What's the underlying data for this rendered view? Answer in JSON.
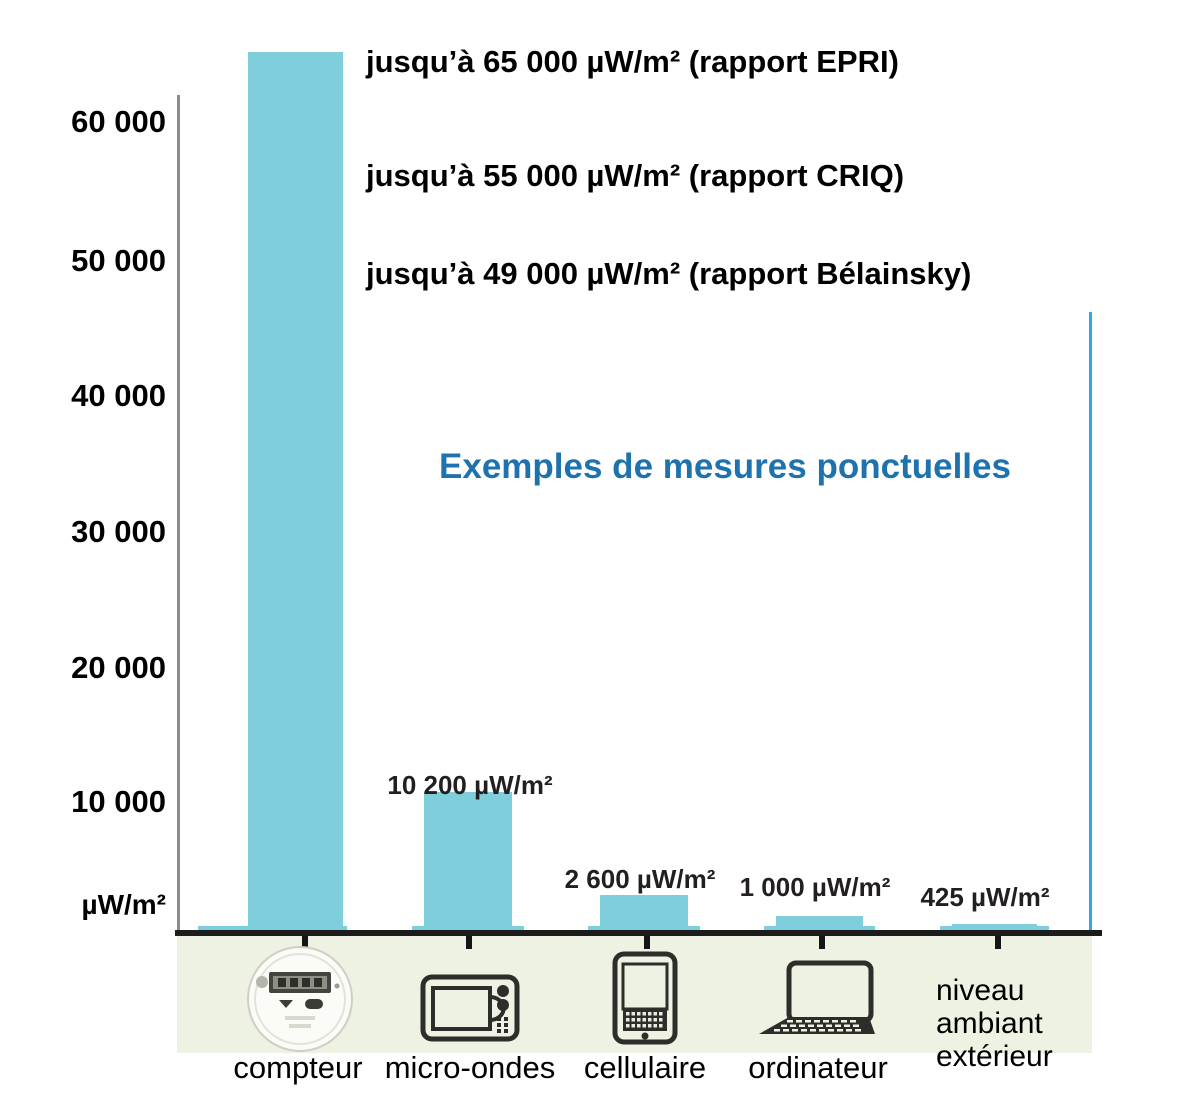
{
  "title": {
    "text": "Exemples de mesures ponctuelles",
    "color": "#1e73ae"
  },
  "annotations": [
    {
      "text": "jusqu’à 65 000 µW/m² (rapport EPRI)"
    },
    {
      "text": "jusqu’à 55 000 µW/m² (rapport CRIQ)"
    },
    {
      "text": "jusqu’à 49 000 µW/m² (rapport Bélainsky)"
    }
  ],
  "y_axis": {
    "unit": "µW/m²",
    "ticks": [
      "60 000",
      "50 000",
      "40 000",
      "30 000",
      "20 000",
      "10 000"
    ]
  },
  "categories": [
    {
      "label": "compteur",
      "icon": "smart-meter-icon",
      "value_label": ""
    },
    {
      "label": "micro-ondes",
      "icon": "microwave-icon",
      "value_label": "10 200 µW/m²"
    },
    {
      "label": "cellulaire",
      "icon": "cellphone-icon",
      "value_label": "2 600 µW/m²"
    },
    {
      "label": "ordinateur",
      "icon": "laptop-icon",
      "value_label": "1 000 µW/m²"
    },
    {
      "label": "niveau ambiant extérieur",
      "icon": "none",
      "value_label": "425 µW/m²"
    }
  ],
  "colors": {
    "bar": "#7ecfdb",
    "ambient_line": "#29abe2",
    "strip": "#edf2e3",
    "x_axis": "#1c1c1c",
    "y_axis": "#8c8c8c",
    "title_blue": "#1e73ae",
    "value_text": "#231f20"
  },
  "chart_data": {
    "type": "bar",
    "categories": [
      "compteur",
      "micro-ondes",
      "cellulaire",
      "ordinateur",
      "niveau ambiant extérieur"
    ],
    "values": [
      65000,
      10200,
      2600,
      1000,
      425
    ],
    "bar_value_labels": [
      "",
      "10 200 µW/m²",
      "2 600 µW/m²",
      "1 000 µW/m²",
      "425 µW/m²"
    ],
    "series": [
      {
        "name": "mesures ponctuelles",
        "values": [
          65000,
          10200,
          2600,
          1000,
          425
        ]
      }
    ],
    "title": "Exemples de mesures ponctuelles",
    "xlabel": "",
    "ylabel": "µW/m²",
    "ylim": [
      0,
      65000
    ],
    "yticks": [
      10000,
      20000,
      30000,
      40000,
      50000,
      60000
    ],
    "grid": false,
    "legend": false,
    "bar_color": "#7ecfdb",
    "annotations": [
      "jusqu’à 65 000 µW/m² (rapport EPRI)",
      "jusqu’à 55 000 µW/m² (rapport CRIQ)",
      "jusqu’à 49 000 µW/m² (rapport Bélainsky)"
    ]
  }
}
